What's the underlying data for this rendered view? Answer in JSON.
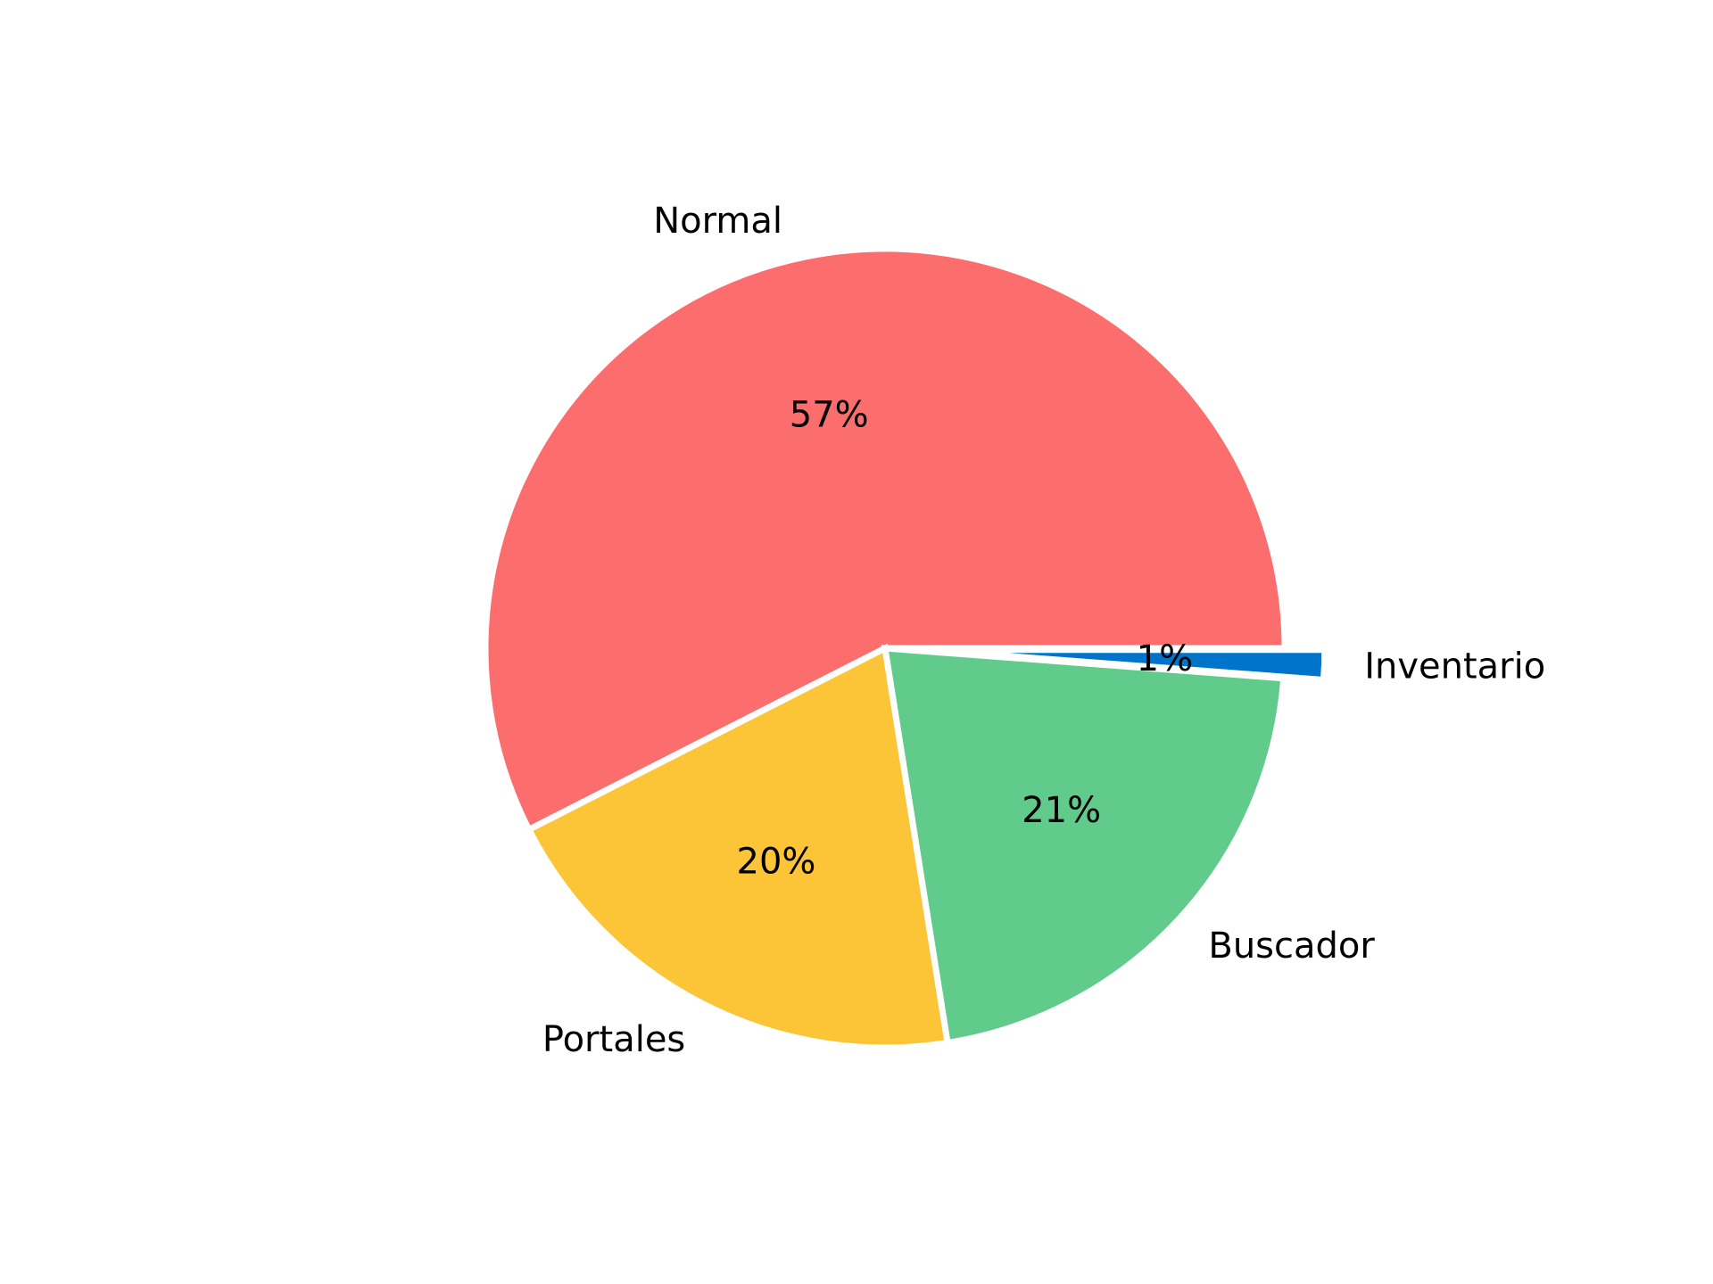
{
  "chart_data": {
    "type": "pie",
    "title": "",
    "slices": [
      {
        "label": "Normal",
        "value": 57.5,
        "pct_label": "57%",
        "color": "#fc6d6d",
        "explode": false
      },
      {
        "label": "Portales",
        "value": 20.0,
        "pct_label": "20%",
        "color": "#fcc537",
        "explode": false
      },
      {
        "label": "Buscador",
        "value": 21.3,
        "pct_label": "21%",
        "color": "#61cb8c",
        "explode": false
      },
      {
        "label": "Inventario",
        "value": 1.2,
        "pct_label": "1%",
        "color": "#0074ca",
        "explode": true
      }
    ],
    "start_angle_deg": 0,
    "direction": "counterclockwise",
    "wedge_edge_color": "#ffffff",
    "legend": "none"
  }
}
